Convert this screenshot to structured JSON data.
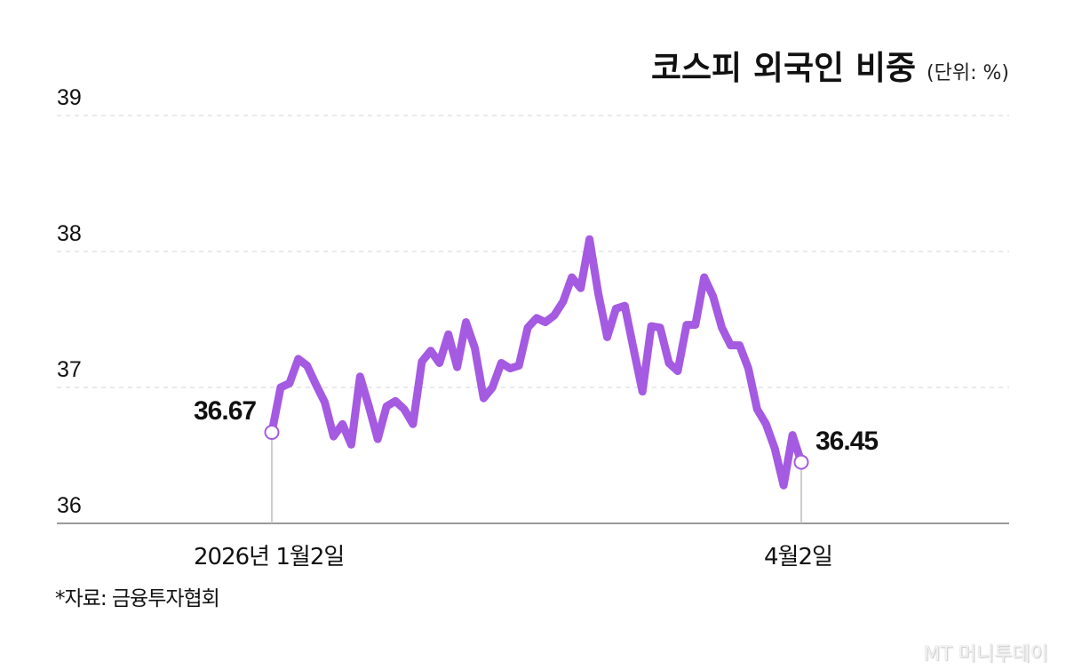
{
  "title": {
    "main": "코스피 외국인 비중",
    "unit": "(단위: %)"
  },
  "y_ticks": [
    "39",
    "38",
    "37",
    "36"
  ],
  "x_labels": {
    "start": "2026년 1월2일",
    "end": "4월2일"
  },
  "annotations": {
    "start_value": "36.67",
    "end_value": "36.45"
  },
  "source": "*자료: 금융투자협회",
  "logo": "MT 머니투데이",
  "colors": {
    "line": "#a55ae2",
    "grid": "#d6d6d6",
    "axis": "#9a9a9a",
    "text": "#111111"
  },
  "chart_data": {
    "type": "line",
    "title": "코스피 외국인 비중",
    "unit": "%",
    "xlabel": "",
    "ylabel": "",
    "ylim": [
      36,
      39
    ],
    "yticks": [
      36,
      37,
      38,
      39
    ],
    "grid": "horizontal dashed",
    "x_tick_labels": [
      "2026년 1월2일",
      "4월2일"
    ],
    "series": [
      {
        "name": "코스피 외국인 비중",
        "values": [
          36.67,
          37.0,
          37.03,
          37.21,
          37.16,
          37.02,
          36.89,
          36.64,
          36.73,
          36.58,
          37.08,
          36.86,
          36.62,
          36.86,
          36.9,
          36.84,
          36.73,
          37.19,
          37.27,
          37.18,
          37.39,
          37.15,
          37.48,
          37.29,
          36.92,
          37.0,
          37.18,
          37.14,
          37.16,
          37.44,
          37.51,
          37.48,
          37.53,
          37.63,
          37.81,
          37.73,
          38.09,
          37.69,
          37.37,
          37.58,
          37.6,
          37.28,
          36.97,
          37.45,
          37.44,
          37.18,
          37.12,
          37.46,
          37.46,
          37.81,
          37.67,
          37.44,
          37.31,
          37.31,
          37.14,
          36.84,
          36.73,
          36.55,
          36.28,
          36.65,
          36.45
        ]
      }
    ],
    "annotations": [
      {
        "label": "36.67",
        "position": "start"
      },
      {
        "label": "36.45",
        "position": "end"
      }
    ]
  }
}
